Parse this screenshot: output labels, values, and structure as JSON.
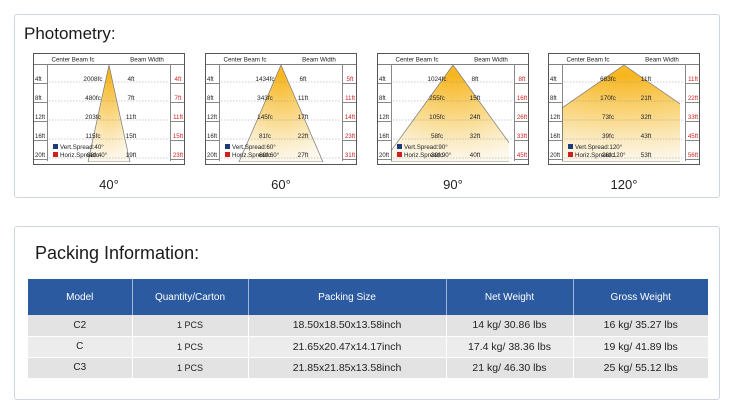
{
  "photometry": {
    "title": "Photometry:",
    "header_left": "Center Beam fc",
    "header_right": "Beam Width",
    "legend_vert_color": "#1f3a78",
    "legend_horiz_color": "#d11f1f",
    "diagrams": [
      {
        "angle": "40°",
        "distances": [
          "4ft",
          "8ft",
          "12ft",
          "16ft",
          "20ft"
        ],
        "center_fc": [
          "2008fc",
          "480fc",
          "203fc",
          "115fc",
          "98fc"
        ],
        "vert_width": [
          "4ft",
          "7ft",
          "11ft",
          "15ft",
          "19ft"
        ],
        "horiz_width": [
          "4ft",
          "7ft",
          "11ft",
          "15ft",
          "23ft"
        ],
        "legend_vert": "Vert.Spread:40°",
        "legend_horiz": "Horiz.Spread:40°"
      },
      {
        "angle": "60°",
        "distances": [
          "4ft",
          "8ft",
          "12ft",
          "16ft",
          "20ft"
        ],
        "center_fc": [
          "1434fc",
          "343fc",
          "145fc",
          "81fc",
          "69fc"
        ],
        "vert_width": [
          "6ft",
          "11ft",
          "17ft",
          "22ft",
          "27ft"
        ],
        "horiz_width": [
          "5ft",
          "11ft",
          "14ft",
          "23ft",
          "31ft"
        ],
        "legend_vert": "Vert.Spread:60°",
        "legend_horiz": "Horiz.Spread:60°"
      },
      {
        "angle": "90°",
        "distances": [
          "4ft",
          "8ft",
          "12ft",
          "16ft",
          "20ft"
        ],
        "center_fc": [
          "1024fc",
          "255fc",
          "105fc",
          "58fc",
          "39fc"
        ],
        "vert_width": [
          "8ft",
          "15ft",
          "24ft",
          "32ft",
          "40ft"
        ],
        "horiz_width": [
          "8ft",
          "16ft",
          "26ft",
          "33ft",
          "45ft"
        ],
        "legend_vert": "Vert.Spread:90°",
        "legend_horiz": "Horiz.Spread:90°"
      },
      {
        "angle": "120°",
        "distances": [
          "4ft",
          "8ft",
          "12ft",
          "16ft",
          "20ft"
        ],
        "center_fc": [
          "683fc",
          "170fc",
          "73fc",
          "39fc",
          "26fc"
        ],
        "vert_width": [
          "11ft",
          "21ft",
          "32ft",
          "43ft",
          "53ft"
        ],
        "horiz_width": [
          "11ft",
          "22ft",
          "33ft",
          "45ft",
          "56ft"
        ],
        "legend_vert": "Vert.Spread:120°",
        "legend_horiz": "Horiz.Spread:120°"
      }
    ]
  },
  "packing": {
    "title": "Packing Information:",
    "columns": [
      "Model",
      "Quantity/Carton",
      "Packing Size",
      "Net Weight",
      "Gross Weight"
    ],
    "rows": [
      [
        "C2",
        "1 PCS",
        "18.50x18.50x13.58inch",
        "14 kg/ 30.86 lbs",
        "16 kg/ 35.27 lbs"
      ],
      [
        "C",
        "1 PCS",
        "21.65x20.47x14.17inch",
        "17.4 kg/ 38.36 lbs",
        "19 kg/ 41.89 lbs"
      ],
      [
        "C3",
        "1 PCS",
        "21.85x21.85x13.58inch",
        "21 kg/ 46.30 lbs",
        "25 kg/ 55.12 lbs"
      ]
    ]
  }
}
